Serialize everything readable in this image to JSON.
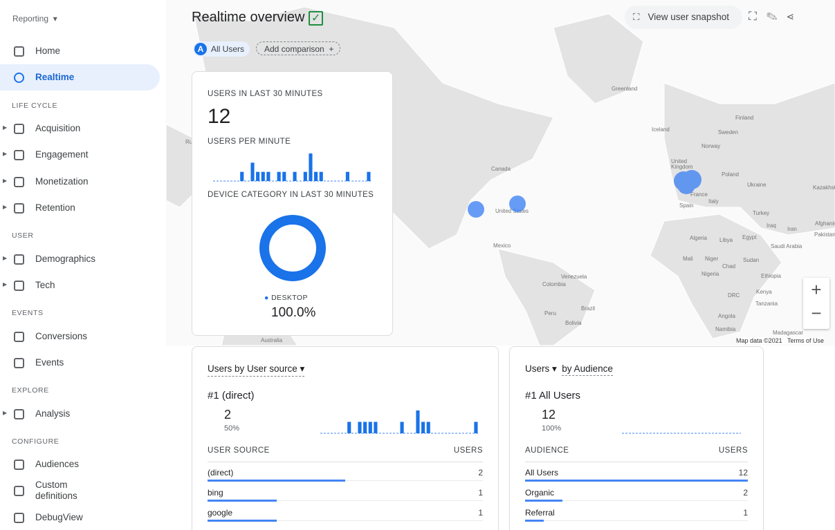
{
  "sidebar": {
    "reporting": "Reporting",
    "items": [
      {
        "label": "Home"
      },
      {
        "label": "Realtime",
        "active": true
      },
      {
        "section": "LIFE CYCLE"
      },
      {
        "label": "Acquisition",
        "expandable": true
      },
      {
        "label": "Engagement",
        "expandable": true
      },
      {
        "label": "Monetization",
        "expandable": true
      },
      {
        "label": "Retention",
        "expandable": true
      },
      {
        "section": "USER"
      },
      {
        "label": "Demographics",
        "expandable": true
      },
      {
        "label": "Tech",
        "expandable": true
      },
      {
        "section": "EVENTS"
      },
      {
        "label": "Conversions"
      },
      {
        "label": "Events"
      },
      {
        "section": "EXPLORE"
      },
      {
        "label": "Analysis",
        "expandable": true
      },
      {
        "section": "CONFIGURE"
      },
      {
        "label": "Audiences"
      },
      {
        "label": "Custom definitions"
      },
      {
        "label": "DebugView"
      }
    ]
  },
  "header": {
    "title": "Realtime overview",
    "compare": {
      "badge": "A",
      "label": "All Users"
    },
    "add_comparison": "Add comparison",
    "snapshot": "View user snapshot"
  },
  "map": {
    "labels": [
      "Greenland",
      "Iceland",
      "Finland",
      "Sweden",
      "Norway",
      "United",
      "Kingdom",
      "Poland",
      "Ukraine",
      "Kazakhstan",
      "France",
      "Spain",
      "Italy",
      "Turkey",
      "Iraq",
      "Iran",
      "Afghanistan",
      "Pakistan",
      "Algeria",
      "Libya",
      "Egypt",
      "Saudi Arabia",
      "Mali",
      "Niger",
      "Chad",
      "Sudan",
      "Nigeria",
      "Ethiopia",
      "DRC",
      "Kenya",
      "Tanzania",
      "Angola",
      "Namibia",
      "Madagascar",
      "Canada",
      "United States",
      "Mexico",
      "Venezuela",
      "Colombia",
      "Peru",
      "Brazil",
      "Bolivia",
      "Australia",
      "Russ"
    ],
    "attribution": "Map data ©2021",
    "terms": "Terms of Use"
  },
  "realtime_card": {
    "users_title": "USERS IN LAST 30 MINUTES",
    "users_value": 12,
    "per_minute_title": "USERS PER MINUTE",
    "per_minute": [
      0,
      0,
      0,
      0,
      0,
      1,
      0,
      2,
      1,
      1,
      1,
      0,
      1,
      1,
      0,
      1,
      0,
      1,
      3,
      1,
      1,
      0,
      0,
      0,
      0,
      1,
      0,
      0,
      0,
      1
    ],
    "device_title": "DEVICE CATEGORY IN LAST 30 MINUTES",
    "device": {
      "name": "DESKTOP",
      "percent": "100.0%"
    }
  },
  "source_card": {
    "title": "Users by User source",
    "top": {
      "rank": "#1 (direct)",
      "value": 2,
      "percent": "50%"
    },
    "bars": [
      0,
      0,
      0,
      0,
      0,
      1,
      0,
      1,
      1,
      1,
      1,
      0,
      0,
      0,
      0,
      1,
      0,
      0,
      2,
      1,
      1,
      0,
      0,
      0,
      0,
      0,
      0,
      0,
      0,
      1
    ],
    "columns": [
      "USER SOURCE",
      "USERS"
    ],
    "rows": [
      [
        "(direct)",
        2
      ],
      [
        "bing",
        1
      ],
      [
        "google",
        1
      ]
    ]
  },
  "audience_card": {
    "title_metric": "Users",
    "title_dim": "by Audience",
    "top": {
      "rank": "#1 All Users",
      "value": 12,
      "percent": "100%"
    },
    "bars": [
      0,
      0,
      0,
      0,
      0,
      0,
      0,
      0,
      0,
      0,
      0,
      0,
      0,
      0,
      0,
      0,
      0,
      0,
      0,
      0,
      0,
      0,
      0,
      0,
      0,
      0,
      0,
      0,
      0,
      0
    ],
    "columns": [
      "AUDIENCE",
      "USERS"
    ],
    "rows": [
      [
        "All Users",
        12
      ],
      [
        "Organic",
        2
      ],
      [
        "Referral",
        1
      ]
    ]
  }
}
